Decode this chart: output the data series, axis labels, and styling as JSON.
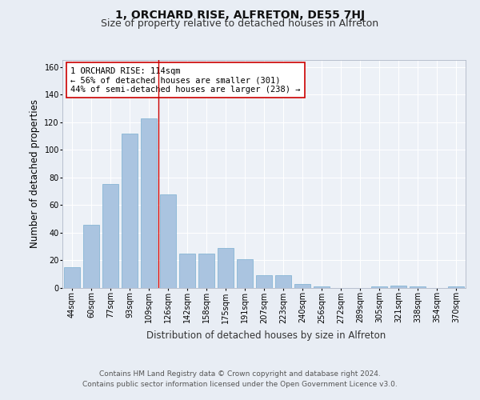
{
  "title": "1, ORCHARD RISE, ALFRETON, DE55 7HJ",
  "subtitle": "Size of property relative to detached houses in Alfreton",
  "xlabel": "Distribution of detached houses by size in Alfreton",
  "ylabel": "Number of detached properties",
  "categories": [
    "44sqm",
    "60sqm",
    "77sqm",
    "93sqm",
    "109sqm",
    "126sqm",
    "142sqm",
    "158sqm",
    "175sqm",
    "191sqm",
    "207sqm",
    "223sqm",
    "240sqm",
    "256sqm",
    "272sqm",
    "289sqm",
    "305sqm",
    "321sqm",
    "338sqm",
    "354sqm",
    "370sqm"
  ],
  "values": [
    15,
    46,
    75,
    112,
    123,
    68,
    25,
    25,
    29,
    21,
    9,
    9,
    3,
    1,
    0,
    0,
    1,
    2,
    1,
    0,
    1
  ],
  "bar_color": "#aac4e0",
  "bar_edge_color": "#7aaed0",
  "vline_x": 4.5,
  "vline_color": "#cc0000",
  "annotation_text": "1 ORCHARD RISE: 114sqm\n← 56% of detached houses are smaller (301)\n44% of semi-detached houses are larger (238) →",
  "annotation_box_color": "#ffffff",
  "annotation_box_edge": "#cc0000",
  "ylim": [
    0,
    165
  ],
  "yticks": [
    0,
    20,
    40,
    60,
    80,
    100,
    120,
    140,
    160
  ],
  "bg_color": "#e8edf4",
  "plot_bg_color": "#edf1f7",
  "footer_line1": "Contains HM Land Registry data © Crown copyright and database right 2024.",
  "footer_line2": "Contains public sector information licensed under the Open Government Licence v3.0.",
  "title_fontsize": 10,
  "subtitle_fontsize": 9,
  "axis_label_fontsize": 8.5,
  "tick_fontsize": 7,
  "annotation_fontsize": 7.5,
  "footer_fontsize": 6.5
}
